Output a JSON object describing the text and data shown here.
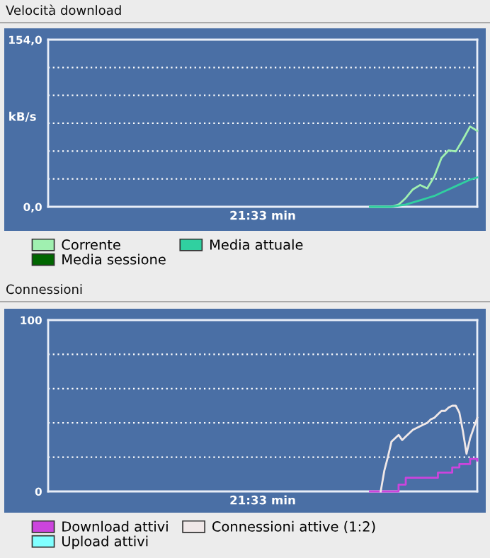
{
  "chart_data": [
    {
      "type": "line",
      "title": "Velocità download",
      "xlabel": "21:33 min",
      "ylabel": "kB/s",
      "categories": [
        null,
        null,
        null,
        null,
        null,
        null,
        null,
        null,
        null,
        null,
        null,
        null,
        null,
        null,
        null,
        null,
        null,
        null,
        null,
        null,
        null,
        null,
        null,
        null,
        null,
        null,
        null,
        null,
        null,
        null,
        null,
        null,
        null,
        null,
        null,
        null,
        null,
        null,
        null,
        null,
        null,
        null,
        null,
        null,
        null,
        null,
        null,
        null,
        null,
        null,
        null,
        null,
        null,
        null,
        null,
        null,
        null,
        null,
        null,
        null,
        null
      ],
      "ylim": [
        0,
        154
      ],
      "yticks": [
        {
          "value": 0,
          "label": "0,0"
        },
        {
          "value": 25.67,
          "label": null
        },
        {
          "value": 51.33,
          "label": null
        },
        {
          "value": 77,
          "label": null
        },
        {
          "value": 102.67,
          "label": null
        },
        {
          "value": 128.33,
          "label": null
        },
        {
          "value": 154,
          "label": "154,0"
        }
      ],
      "grid": "y",
      "legend": "bottom",
      "tick_labels": "y",
      "series": [
        {
          "name": "Corrente",
          "color": "#a0f0b0",
          "values": [
            null,
            null,
            null,
            null,
            null,
            null,
            null,
            null,
            null,
            null,
            null,
            null,
            null,
            null,
            null,
            null,
            null,
            null,
            null,
            null,
            null,
            null,
            null,
            null,
            null,
            null,
            null,
            null,
            null,
            null,
            null,
            null,
            null,
            null,
            null,
            null,
            null,
            null,
            null,
            null,
            null,
            null,
            null,
            null,
            null,
            0,
            0,
            0,
            0,
            2,
            8,
            16,
            20,
            17,
            28,
            45,
            52,
            51,
            62,
            74,
            70
          ]
        },
        {
          "name": "Media sessione",
          "color": "#006600",
          "values": [
            null,
            null,
            null,
            null,
            null,
            null,
            null,
            null,
            null,
            null,
            null,
            null,
            null,
            null,
            null,
            null,
            null,
            null,
            null,
            null,
            null,
            null,
            null,
            null,
            null,
            null,
            null,
            null,
            null,
            null,
            null,
            null,
            null,
            null,
            null,
            null,
            null,
            null,
            null,
            null,
            null,
            null,
            null,
            null,
            null,
            null,
            null,
            null,
            null,
            null,
            null,
            null,
            null,
            null,
            null,
            null,
            null,
            null,
            null,
            null,
            null
          ]
        },
        {
          "name": "Media attuale",
          "color": "#30d0a0",
          "values": [
            null,
            null,
            null,
            null,
            null,
            null,
            null,
            null,
            null,
            null,
            null,
            null,
            null,
            null,
            null,
            null,
            null,
            null,
            null,
            null,
            null,
            null,
            null,
            null,
            null,
            null,
            null,
            null,
            null,
            null,
            null,
            null,
            null,
            null,
            null,
            null,
            null,
            null,
            null,
            null,
            null,
            null,
            null,
            null,
            null,
            0,
            0,
            0,
            0,
            1,
            2,
            4,
            6,
            8,
            10,
            13,
            16,
            19,
            22,
            25,
            27
          ]
        }
      ]
    },
    {
      "type": "line",
      "title": "Connessioni",
      "xlabel": "21:33 min",
      "categories": [
        null,
        null,
        null,
        null,
        null,
        null,
        null,
        null,
        null,
        null,
        null,
        null,
        null,
        null,
        null,
        null,
        null,
        null,
        null,
        null,
        null,
        null,
        null,
        null,
        null,
        null,
        null,
        null,
        null,
        null,
        null,
        null,
        null,
        null,
        null,
        null,
        null,
        null,
        null,
        null,
        null,
        null,
        null,
        null,
        null,
        null,
        null,
        null,
        null,
        null,
        null,
        null,
        null,
        null,
        null,
        null,
        null,
        null,
        null,
        null,
        null,
        null,
        null,
        null,
        null,
        null,
        null,
        null,
        null,
        null,
        null,
        null,
        null,
        null,
        null,
        null,
        null,
        null,
        null,
        null,
        null,
        null,
        null,
        null,
        null,
        null,
        null,
        null,
        null,
        null,
        null,
        null,
        null,
        null,
        null,
        null,
        null,
        null,
        null,
        null,
        null,
        null,
        null,
        null,
        null,
        null,
        null,
        null,
        null,
        null,
        null,
        null,
        null,
        null,
        null,
        null,
        null,
        null,
        null,
        null,
        null
      ],
      "ylim": [
        0,
        100
      ],
      "yticks": [
        0,
        {
          "value": 20,
          "label": null
        },
        {
          "value": 40,
          "label": null
        },
        {
          "value": 60,
          "label": null
        },
        {
          "value": 80,
          "label": null
        },
        100
      ],
      "grid": "y",
      "legend": "bottom",
      "tick_labels": "y",
      "series": [
        {
          "name": "Download attivi",
          "type": "step",
          "color": "#cc44dd",
          "values": [
            null,
            null,
            null,
            null,
            null,
            null,
            null,
            null,
            null,
            null,
            null,
            null,
            null,
            null,
            null,
            null,
            null,
            null,
            null,
            null,
            null,
            null,
            null,
            null,
            null,
            null,
            null,
            null,
            null,
            null,
            null,
            null,
            null,
            null,
            null,
            null,
            null,
            null,
            null,
            null,
            null,
            null,
            null,
            null,
            null,
            null,
            null,
            null,
            null,
            null,
            null,
            null,
            null,
            null,
            null,
            null,
            null,
            null,
            null,
            null,
            null,
            null,
            null,
            null,
            null,
            null,
            null,
            null,
            null,
            null,
            null,
            null,
            null,
            null,
            null,
            null,
            null,
            null,
            null,
            null,
            null,
            null,
            null,
            null,
            null,
            null,
            null,
            null,
            null,
            null,
            0,
            0,
            0,
            0,
            0,
            0,
            0,
            0,
            4,
            4,
            8,
            8,
            8,
            8,
            8,
            8,
            8,
            8,
            8,
            11,
            11,
            11,
            11,
            14,
            14,
            16,
            16,
            16,
            19,
            19,
            18
          ]
        },
        {
          "name": "Upload attivi",
          "color": "#80ffff",
          "values": [
            null,
            null,
            null,
            null,
            null,
            null,
            null,
            null,
            null,
            null,
            null,
            null,
            null,
            null,
            null,
            null,
            null,
            null,
            null,
            null,
            null,
            null,
            null,
            null,
            null,
            null,
            null,
            null,
            null,
            null,
            null,
            null,
            null,
            null,
            null,
            null,
            null,
            null,
            null,
            null,
            null,
            null,
            null,
            null,
            null,
            null,
            null,
            null,
            null,
            null,
            null,
            null,
            null,
            null,
            null,
            null,
            null,
            null,
            null,
            null,
            null,
            null,
            null,
            null,
            null,
            null,
            null,
            null,
            null,
            null,
            null,
            null,
            null,
            null,
            null,
            null,
            null,
            null,
            null,
            null,
            null,
            null,
            null,
            null,
            null,
            null,
            null,
            null,
            null,
            null,
            null,
            null,
            null,
            null,
            null,
            null,
            null,
            null,
            null,
            null,
            null,
            null,
            null,
            null,
            null,
            null,
            null,
            null,
            null,
            null,
            null,
            null,
            null,
            null,
            null,
            null,
            null,
            null,
            null,
            null,
            null
          ]
        },
        {
          "name": "Connessioni attive (1:2)",
          "color": "#f0e8e8",
          "values": [
            null,
            null,
            null,
            null,
            null,
            null,
            null,
            null,
            null,
            null,
            null,
            null,
            null,
            null,
            null,
            null,
            null,
            null,
            null,
            null,
            null,
            null,
            null,
            null,
            null,
            null,
            null,
            null,
            null,
            null,
            null,
            null,
            null,
            null,
            null,
            null,
            null,
            null,
            null,
            null,
            null,
            null,
            null,
            null,
            null,
            null,
            null,
            null,
            null,
            null,
            null,
            null,
            null,
            null,
            null,
            null,
            null,
            null,
            null,
            null,
            null,
            null,
            null,
            null,
            null,
            null,
            null,
            null,
            null,
            null,
            null,
            null,
            null,
            null,
            null,
            null,
            null,
            null,
            null,
            null,
            null,
            null,
            null,
            null,
            null,
            null,
            null,
            null,
            null,
            null,
            null,
            null,
            null,
            0,
            12,
            20,
            29,
            31,
            33,
            30,
            32,
            34,
            36,
            37,
            38,
            39,
            40,
            42,
            43,
            45,
            47,
            47,
            49,
            50,
            50,
            46,
            35,
            22,
            31,
            37,
            43
          ]
        }
      ]
    }
  ]
}
